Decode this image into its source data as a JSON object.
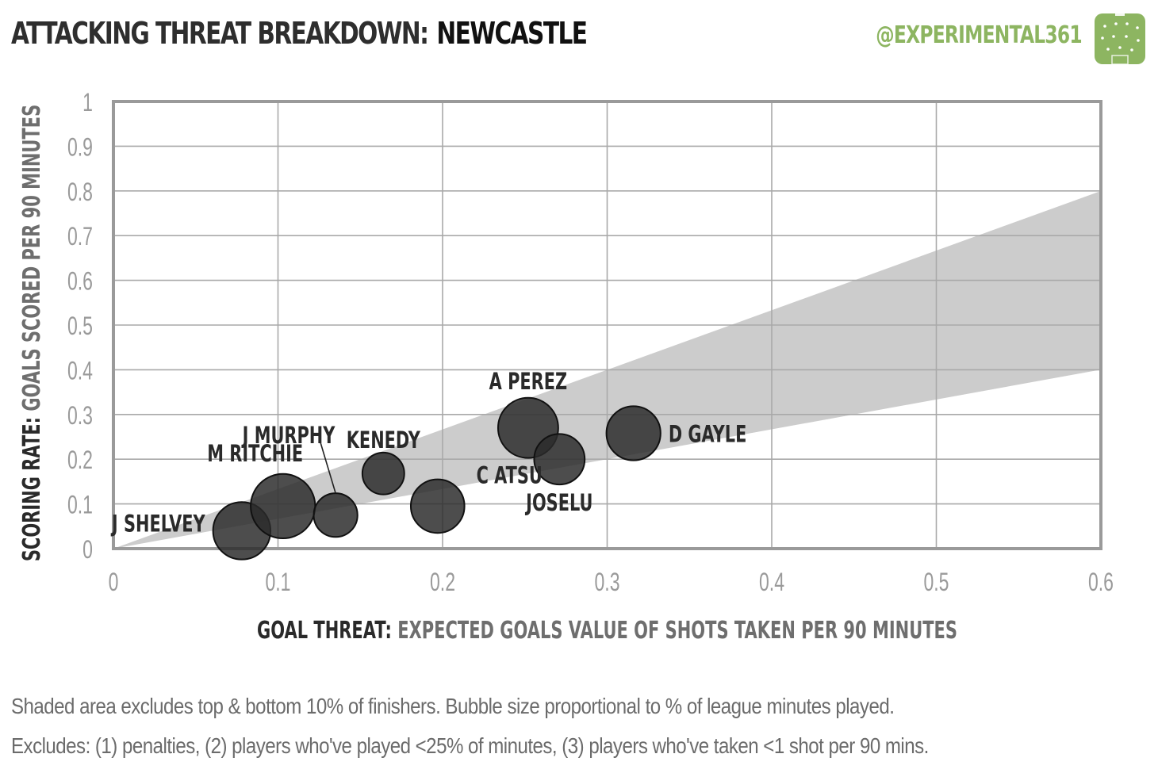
{
  "header": {
    "title_prefix": "ATTACKING THREAT BREAKDOWN:",
    "title_team": "NEWCASTLE",
    "brand": "@EXPERIMENTAL361",
    "brand_color": "#8db561"
  },
  "footnotes": [
    "Shaded area excludes top & bottom 10% of finishers. Bubble size proportional to % of league minutes played.",
    "Excludes: (1) penalties, (2) players who've played <25% of minutes, (3) players who've taken <1 shot per 90 mins."
  ],
  "chart_data": {
    "type": "scatter",
    "title": "ATTACKING THREAT BREAKDOWN: NEWCASTLE",
    "xlabel_bold": "GOAL THREAT:",
    "xlabel": "EXPECTED GOALS VALUE OF SHOTS TAKEN PER 90 MINUTES",
    "ylabel_bold": "SCORING RATE:",
    "ylabel": "GOALS SCORED PER 90 MINUTES",
    "xlim": [
      0,
      0.6
    ],
    "ylim": [
      0,
      1
    ],
    "x_ticks": [
      "0",
      "0.1",
      "0.2",
      "0.3",
      "0.4",
      "0.5",
      "0.6"
    ],
    "y_ticks": [
      "0",
      "0.1",
      "0.2",
      "0.3",
      "0.4",
      "0.5",
      "0.6",
      "0.7",
      "0.8",
      "0.9",
      "1"
    ],
    "grid": true,
    "band": {
      "description": "Shaded area excludes top & bottom 10% of finishers",
      "lower_slope": 0.667,
      "upper_slope": 1.333,
      "color": "#cccccc"
    },
    "bubble_color": "#2b2b2b",
    "points": [
      {
        "name": "J SHELVEY",
        "x": 0.078,
        "y": 0.04,
        "size": 0.62
      },
      {
        "name": "M RITCHIE",
        "x": 0.103,
        "y": 0.095,
        "size": 0.78
      },
      {
        "name": "J MURPHY",
        "x": 0.135,
        "y": 0.075,
        "size": 0.36
      },
      {
        "name": "KENEDY",
        "x": 0.164,
        "y": 0.168,
        "size": 0.33
      },
      {
        "name": "C ATSU",
        "x": 0.197,
        "y": 0.095,
        "size": 0.54
      },
      {
        "name": "A PEREZ",
        "x": 0.252,
        "y": 0.27,
        "size": 0.68
      },
      {
        "name": "JOSELU",
        "x": 0.271,
        "y": 0.2,
        "size": 0.48
      },
      {
        "name": "D GAYLE",
        "x": 0.316,
        "y": 0.258,
        "size": 0.55
      }
    ]
  }
}
